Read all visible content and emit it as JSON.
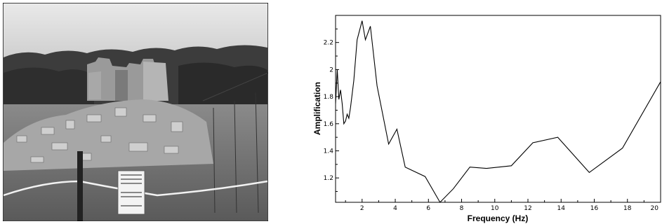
{
  "photo": {
    "sign": {
      "lines": [
        "",
        "",
        "",
        "",
        "",
        ""
      ]
    }
  },
  "chart_data": {
    "type": "line",
    "title": "",
    "xlabel": "Frequency (Hz)",
    "ylabel": "Amplification",
    "xlim": [
      0.4,
      20
    ],
    "ylim": [
      1.02,
      2.4
    ],
    "grid": false,
    "x_ticks": [
      2,
      4,
      6,
      8,
      10,
      12,
      14,
      16,
      18,
      20
    ],
    "y_ticks": [
      1.2,
      1.4,
      1.6,
      1.8,
      2.0,
      2.2
    ],
    "x_tick_labels": [
      "2",
      "4",
      "6",
      "8",
      "10",
      "12",
      "14",
      "16",
      "18",
      "20"
    ],
    "y_tick_labels": [
      "1.2",
      "1.4",
      "1.6",
      "1.8",
      "2",
      "2.2"
    ],
    "series": [
      {
        "color": "#000000",
        "x": [
          0.4,
          0.5,
          0.6,
          0.7,
          0.8,
          0.9,
          1.0,
          1.1,
          1.2,
          1.3,
          1.5,
          1.7,
          2.0,
          2.2,
          2.5,
          2.9,
          3.6,
          4.1,
          4.6,
          5.8,
          6.7,
          7.5,
          8.5,
          9.5,
          11.0,
          12.3,
          13.8,
          15.7,
          17.7,
          20.0
        ],
        "y": [
          1.75,
          2.0,
          1.78,
          1.85,
          1.75,
          1.6,
          1.62,
          1.67,
          1.64,
          1.72,
          1.92,
          2.22,
          2.36,
          2.22,
          2.32,
          1.88,
          1.45,
          1.56,
          1.28,
          1.21,
          1.02,
          1.12,
          1.28,
          1.27,
          1.29,
          1.46,
          1.5,
          1.24,
          1.42,
          1.91
        ]
      }
    ]
  }
}
